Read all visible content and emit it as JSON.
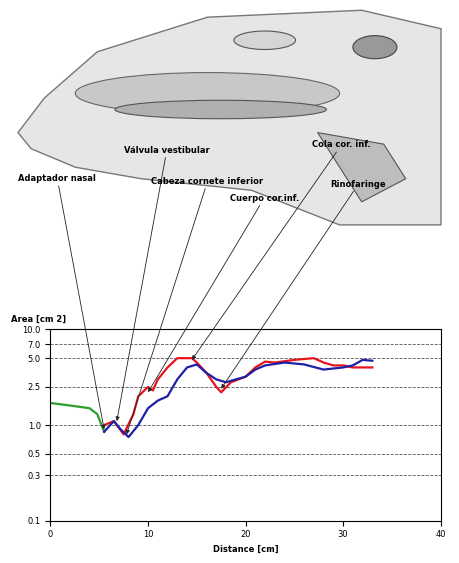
{
  "chart_data": {
    "type": "line",
    "x_label": "Distance [cm]",
    "y_label": "Area [cm 2]",
    "log": "y",
    "grid": true,
    "xlim": [
      0,
      40
    ],
    "ylim": [
      0.1,
      10.0
    ],
    "xticks": [
      0,
      10,
      20,
      30,
      40
    ],
    "yticks": [
      {
        "value": 0.1,
        "label": "0.1"
      },
      {
        "value": 0.3,
        "label": "0.3"
      },
      {
        "value": 0.5,
        "label": "0.5"
      },
      {
        "value": 1.0,
        "label": "1.0"
      },
      {
        "value": 2.5,
        "label": "2.5"
      },
      {
        "value": 5.0,
        "label": "5.0"
      },
      {
        "value": 7.0,
        "label": "7.0"
      },
      {
        "value": 10.0,
        "label": "10.0"
      }
    ],
    "series": [
      {
        "color": "#2ca02c",
        "x": [
          0,
          1,
          2,
          3,
          4,
          4.8,
          5.5
        ],
        "values": [
          1.7,
          1.65,
          1.6,
          1.55,
          1.5,
          1.3,
          0.85
        ]
      },
      {
        "color": "#e8141b",
        "x": [
          5.5,
          6.5,
          7.5,
          8.5,
          9,
          10,
          10.5,
          11,
          12,
          13,
          14.5,
          15,
          16,
          17,
          17.5,
          18.5,
          20,
          21,
          22,
          23,
          25,
          27,
          28,
          29,
          30,
          31,
          33
        ],
        "values": [
          1.0,
          1.1,
          0.8,
          1.3,
          2.0,
          2.5,
          2.3,
          3.0,
          4.0,
          5.0,
          5.0,
          4.5,
          3.5,
          2.5,
          2.2,
          2.8,
          3.2,
          4.0,
          4.6,
          4.5,
          4.8,
          5.0,
          4.5,
          4.2,
          4.2,
          4.0,
          4.0
        ]
      },
      {
        "color": "#1f1fa8",
        "x": [
          5.5,
          6.5,
          7.2,
          8,
          9,
          10,
          11,
          12,
          13,
          14,
          15,
          16,
          17,
          18,
          19,
          20,
          21,
          22,
          24,
          26,
          28,
          30,
          31,
          32,
          33
        ],
        "values": [
          0.85,
          1.1,
          0.9,
          0.75,
          1.0,
          1.5,
          1.8,
          2.0,
          3.0,
          4.0,
          4.3,
          3.5,
          3.0,
          2.8,
          3.0,
          3.2,
          3.8,
          4.2,
          4.5,
          4.3,
          3.8,
          4.0,
          4.2,
          4.8,
          4.7
        ]
      }
    ],
    "annotations": [
      {
        "text": "Adaptador nasal",
        "x": 5.5,
        "y": 0.9
      },
      {
        "text": "Válvula vestibular",
        "x": 6.8,
        "y": 1.1
      },
      {
        "text": "Cabeza cornete inferior",
        "x": 7.8,
        "y": 0.8
      },
      {
        "text": "Cuerpo cor.inf.",
        "x": 10,
        "y": 2.2
      },
      {
        "text": "Cola cor. inf.",
        "x": 14.5,
        "y": 4.8
      },
      {
        "text": "Rinofaringe",
        "x": 17.5,
        "y": 2.4
      }
    ]
  }
}
